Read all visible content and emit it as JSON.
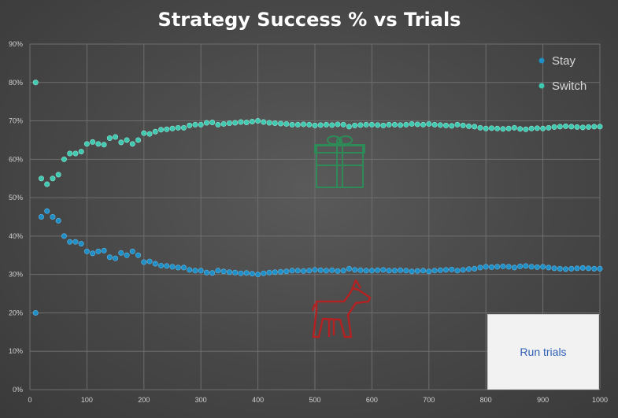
{
  "chart_data": {
    "type": "scatter",
    "title": "Strategy Success % vs Trials",
    "xlabel": "",
    "ylabel": "",
    "xlim": [
      0,
      1000
    ],
    "ylim": [
      0,
      90
    ],
    "x_ticks": [
      "0",
      "100",
      "200",
      "300",
      "400",
      "500",
      "600",
      "700",
      "800",
      "900",
      "1000"
    ],
    "y_ticks": [
      "0%",
      "10%",
      "20%",
      "30%",
      "40%",
      "50%",
      "60%",
      "70%",
      "80%",
      "90%"
    ],
    "grid": true,
    "legend_position": "top-right",
    "series": [
      {
        "name": "Stay",
        "color": "#1f8fc7",
        "x": [
          10,
          20,
          30,
          40,
          50,
          60,
          70,
          80,
          90,
          100,
          110,
          120,
          130,
          140,
          150,
          160,
          170,
          180,
          190,
          200,
          210,
          220,
          230,
          240,
          250,
          260,
          270,
          280,
          290,
          300,
          310,
          320,
          330,
          340,
          350,
          360,
          370,
          380,
          390,
          400,
          410,
          420,
          430,
          440,
          450,
          460,
          470,
          480,
          490,
          500,
          510,
          520,
          530,
          540,
          550,
          560,
          570,
          580,
          590,
          600,
          610,
          620,
          630,
          640,
          650,
          660,
          670,
          680,
          690,
          700,
          710,
          720,
          730,
          740,
          750,
          760,
          770,
          780,
          790,
          800,
          810,
          820,
          830,
          840,
          850,
          860,
          870,
          880,
          890,
          900,
          910,
          920,
          930,
          940,
          950,
          960,
          970,
          980,
          990,
          1000
        ],
        "y": [
          20,
          45,
          46.5,
          45,
          44,
          40,
          38.5,
          38.5,
          38,
          36,
          35.5,
          36,
          36.2,
          34.5,
          34.2,
          35.6,
          35,
          36,
          35,
          33.2,
          33.4,
          32.8,
          32.3,
          32.2,
          32,
          31.8,
          31.8,
          31.2,
          31,
          31,
          30.5,
          30.4,
          31,
          30.8,
          30.6,
          30.5,
          30.3,
          30.4,
          30.2,
          30,
          30.3,
          30.5,
          30.6,
          30.7,
          30.8,
          31,
          31,
          30.9,
          31,
          31.2,
          31.1,
          31,
          31.1,
          30.9,
          31,
          31.5,
          31.2,
          31.1,
          31,
          31,
          31.1,
          31.2,
          31,
          31,
          31.1,
          31,
          30.8,
          30.9,
          31,
          30.8,
          31,
          31.1,
          31.2,
          31.3,
          31,
          31.2,
          31.4,
          31.5,
          31.8,
          32,
          31.9,
          32,
          32.1,
          32,
          31.8,
          32.1,
          32.2,
          32,
          31.9,
          32,
          31.8,
          31.6,
          31.5,
          31.4,
          31.5,
          31.6,
          31.7,
          31.6,
          31.5,
          31.5
        ]
      },
      {
        "name": "Switch",
        "color": "#3fc9b1",
        "x": [
          10,
          20,
          30,
          40,
          50,
          60,
          70,
          80,
          90,
          100,
          110,
          120,
          130,
          140,
          150,
          160,
          170,
          180,
          190,
          200,
          210,
          220,
          230,
          240,
          250,
          260,
          270,
          280,
          290,
          300,
          310,
          320,
          330,
          340,
          350,
          360,
          370,
          380,
          390,
          400,
          410,
          420,
          430,
          440,
          450,
          460,
          470,
          480,
          490,
          500,
          510,
          520,
          530,
          540,
          550,
          560,
          570,
          580,
          590,
          600,
          610,
          620,
          630,
          640,
          650,
          660,
          670,
          680,
          690,
          700,
          710,
          720,
          730,
          740,
          750,
          760,
          770,
          780,
          790,
          800,
          810,
          820,
          830,
          840,
          850,
          860,
          870,
          880,
          890,
          900,
          910,
          920,
          930,
          940,
          950,
          960,
          970,
          980,
          990,
          1000
        ],
        "y": [
          80,
          55,
          53.5,
          55,
          56,
          60,
          61.5,
          61.5,
          62,
          64,
          64.5,
          64,
          63.8,
          65.5,
          65.8,
          64.4,
          65,
          64,
          65,
          66.8,
          66.6,
          67.2,
          67.7,
          67.8,
          68,
          68.2,
          68.2,
          68.8,
          69,
          69,
          69.5,
          69.6,
          69,
          69.2,
          69.4,
          69.5,
          69.7,
          69.6,
          69.8,
          70,
          69.7,
          69.5,
          69.4,
          69.3,
          69.2,
          69,
          69,
          69.1,
          69,
          68.8,
          68.9,
          69,
          68.9,
          69.1,
          69,
          68.5,
          68.8,
          68.9,
          69,
          69,
          68.9,
          68.8,
          69,
          69,
          68.9,
          69,
          69.2,
          69.1,
          69,
          69.2,
          69,
          68.9,
          68.8,
          68.7,
          69,
          68.8,
          68.6,
          68.5,
          68.2,
          68,
          68.1,
          68,
          67.9,
          68,
          68.2,
          67.9,
          67.8,
          68,
          68.1,
          68,
          68.2,
          68.4,
          68.5,
          68.6,
          68.5,
          68.4,
          68.3,
          68.4,
          68.5,
          68.5
        ]
      }
    ]
  },
  "controls": {
    "run_label": "Run trials"
  },
  "decorations": {
    "gift_icon_color": "#2e8b57",
    "goat_icon_color": "#b22222"
  }
}
